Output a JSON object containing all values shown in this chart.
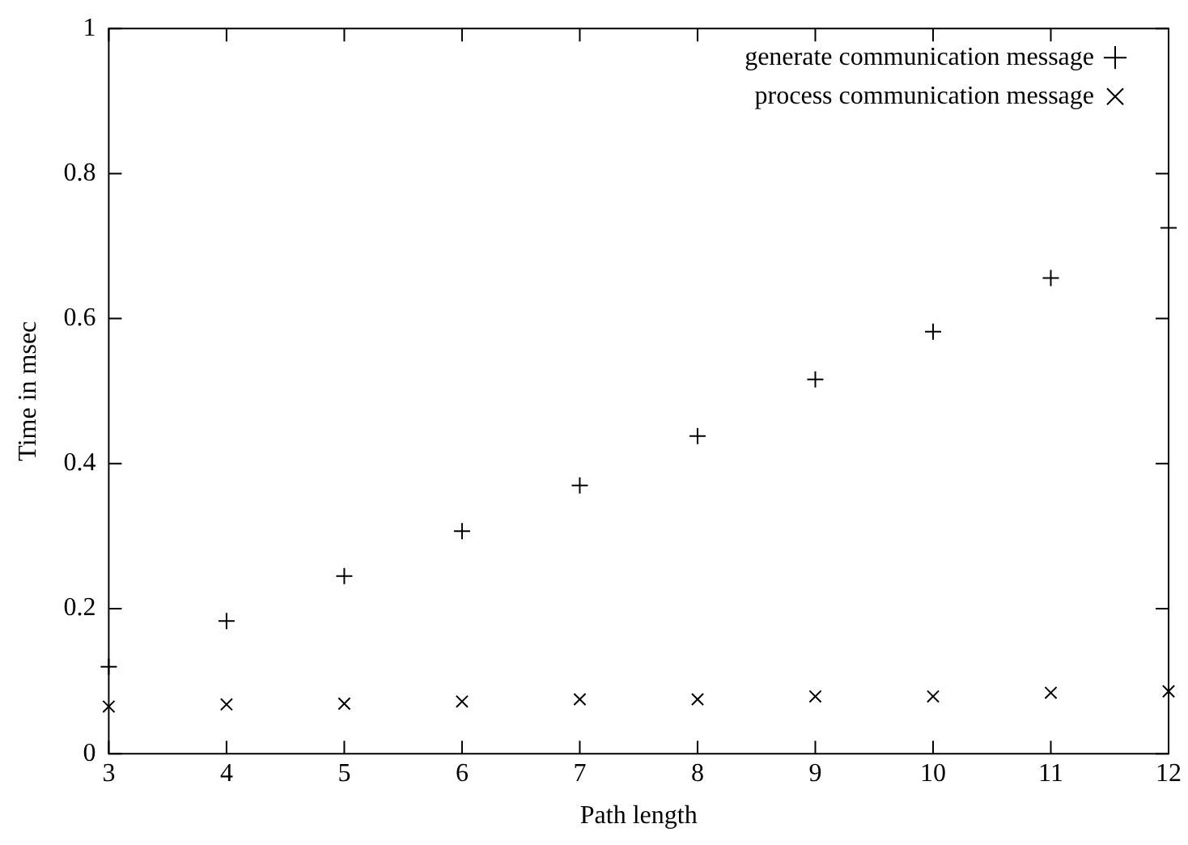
{
  "chart_data": {
    "type": "scatter",
    "xlabel": "Path length",
    "ylabel": "Time in msec",
    "x": [
      3,
      4,
      5,
      6,
      7,
      8,
      9,
      10,
      11,
      12
    ],
    "series": [
      {
        "name": "generate communication message",
        "color": "#000000",
        "marker": "cross",
        "values": [
          0.12,
          0.183,
          0.245,
          0.307,
          0.37,
          0.438,
          0.516,
          0.582,
          0.656,
          0.725
        ]
      },
      {
        "name": "process communication message",
        "color": "#000000",
        "marker": "x",
        "values": [
          0.065,
          0.068,
          0.069,
          0.072,
          0.075,
          0.075,
          0.079,
          0.079,
          0.084,
          0.086
        ]
      }
    ],
    "xlim": [
      3,
      12
    ],
    "xticks": [
      3,
      4,
      5,
      6,
      7,
      8,
      9,
      10,
      11,
      12
    ],
    "ylim": [
      0,
      1
    ],
    "yticks": [
      0,
      0.2,
      0.4,
      0.6,
      0.8,
      1
    ],
    "grid": false,
    "legend": "top right"
  }
}
